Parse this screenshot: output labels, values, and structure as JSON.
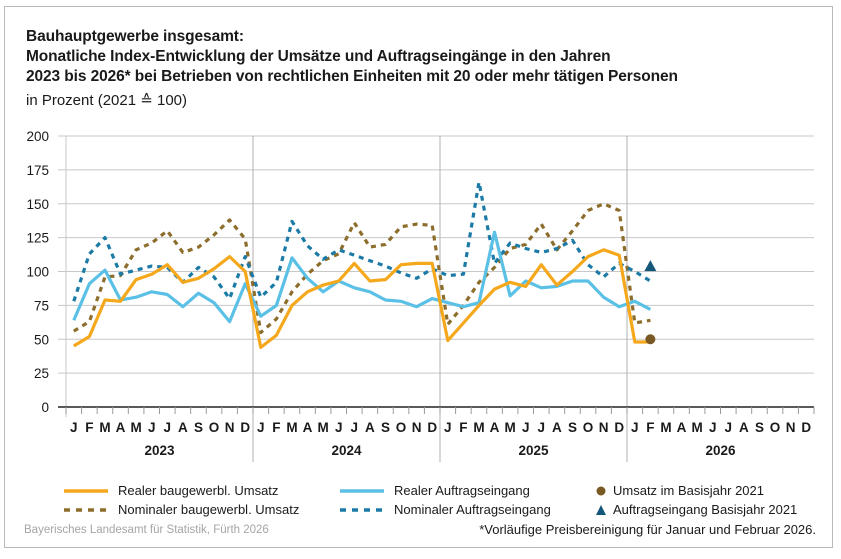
{
  "header": {
    "title_lines": [
      "Bauhauptgewerbe insgesamt:",
      "Monatliche Index-Entwicklung der Umsätze und Auftragseingänge in den Jahren",
      "2023 bis 2026* bei Betrieben von rechtlichen Einheiten mit 20 oder mehr tätigen Personen"
    ],
    "subtitle": "in Prozent (2021 ≙ 100)"
  },
  "footer": {
    "source": "Bayerisches Landesamt für Statistik, Fürth 2026",
    "footnote": "*Vorläufige Preisbereinigung für Januar und Februar 2026."
  },
  "colors": {
    "real_umsatz": "#f5a81c",
    "nominal_umsatz": "#8c6d2c",
    "real_auftrag": "#5bc0e6",
    "nominal_auftrag": "#1b7aa6",
    "basis_umsatz": "#7a5a24",
    "basis_auftrag": "#14577a",
    "grid": "#c8c8c8",
    "axis": "#222222"
  },
  "chart_data": {
    "type": "line",
    "title": "Monatliche Index-Entwicklung der Umsätze und Auftragseingänge 2023 bis 2026",
    "xlabel": "",
    "ylabel": "in Prozent (2021 ≙ 100)",
    "ylim": [
      0,
      200
    ],
    "yticks": [
      0,
      25,
      50,
      75,
      100,
      125,
      150,
      175,
      200
    ],
    "grid": true,
    "legend_position": "bottom",
    "month_labels": [
      "J",
      "F",
      "M",
      "A",
      "M",
      "J",
      "J",
      "A",
      "S",
      "O",
      "N",
      "D"
    ],
    "years": [
      "2023",
      "2024",
      "2025",
      "2026"
    ],
    "series": [
      {
        "key": "real_umsatz",
        "name": "Realer baugewerbl. Umsatz",
        "style": "solid",
        "values": [
          45,
          52,
          79,
          78,
          94,
          98,
          105,
          92,
          95,
          102,
          111,
          100,
          44,
          53,
          75,
          85,
          90,
          93,
          106,
          93,
          94,
          105,
          106,
          106,
          49,
          62,
          75,
          87,
          92,
          89,
          105,
          90,
          100,
          111,
          116,
          112,
          48,
          48
        ]
      },
      {
        "key": "real_auftrag",
        "name": "Realer Auftragseingang",
        "style": "solid",
        "values": [
          64,
          91,
          101,
          79,
          81,
          85,
          83,
          74,
          84,
          77,
          63,
          91,
          67,
          75,
          110,
          95,
          85,
          93,
          88,
          85,
          79,
          78,
          74,
          80,
          77,
          74,
          77,
          129,
          82,
          93,
          88,
          89,
          93,
          93,
          81,
          74,
          78,
          72
        ]
      },
      {
        "key": "nominal_umsatz",
        "name": "Nominaler baugewerbl. Umsatz",
        "style": "dashed",
        "values": [
          56,
          63,
          96,
          97,
          116,
          121,
          130,
          114,
          118,
          127,
          138,
          124,
          55,
          65,
          85,
          98,
          108,
          113,
          136,
          118,
          120,
          133,
          135,
          134,
          61,
          75,
          92,
          103,
          117,
          120,
          135,
          116,
          130,
          145,
          150,
          145,
          62,
          64
        ]
      },
      {
        "key": "nominal_auftrag",
        "name": "Nominaler Auftragseingang",
        "style": "dashed",
        "values": [
          78,
          113,
          125,
          98,
          101,
          104,
          103,
          92,
          103,
          96,
          80,
          111,
          81,
          92,
          137,
          119,
          109,
          116,
          112,
          108,
          104,
          99,
          95,
          102,
          97,
          98,
          166,
          106,
          121,
          117,
          114,
          117,
          123,
          105,
          96,
          106,
          100,
          93
        ]
      }
    ],
    "markers": [
      {
        "key": "basis_umsatz",
        "name": "Umsatz im Basisjahr 2021",
        "shape": "circle",
        "month_index": 37,
        "value": 50
      },
      {
        "key": "basis_auftrag",
        "name": "Auftragseingang Basisjahr 2021",
        "shape": "triangle",
        "month_index": 37,
        "value": 104
      }
    ]
  }
}
